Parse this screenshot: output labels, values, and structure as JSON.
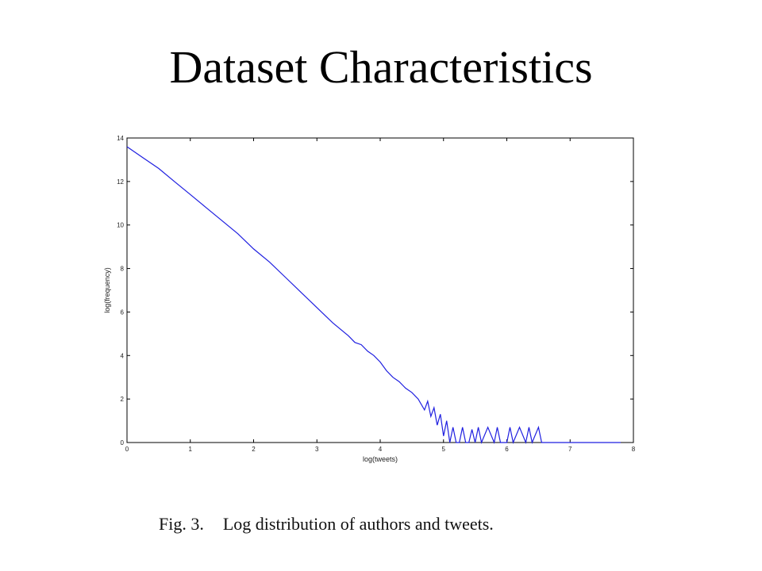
{
  "slide": {
    "title": "Dataset Characteristics"
  },
  "caption": {
    "figure_label": "Fig. 3.",
    "text": "Log distribution of authors and tweets."
  },
  "colors": {
    "series": "#1f1fe0",
    "axes": "#000000",
    "background": "#ffffff"
  },
  "chart_data": {
    "type": "line",
    "title": "",
    "xlabel": "log(tweets)",
    "ylabel": "log(frequency)",
    "xlim": [
      0,
      8
    ],
    "ylim": [
      0,
      14
    ],
    "xticks": [
      0,
      1,
      2,
      3,
      4,
      5,
      6,
      7,
      8
    ],
    "yticks": [
      0,
      2,
      4,
      6,
      8,
      10,
      12,
      14
    ],
    "grid": false,
    "legend": "none",
    "series": [
      {
        "x": [
          0,
          0.25,
          0.5,
          0.75,
          1,
          1.25,
          1.5,
          1.75,
          2,
          2.25,
          2.5,
          2.75,
          3,
          3.25,
          3.5,
          3.6,
          3.7,
          3.8,
          3.9,
          4.0,
          4.1,
          4.2,
          4.3,
          4.4,
          4.5,
          4.6,
          4.7,
          4.75,
          4.8,
          4.85,
          4.9,
          4.95,
          5.0,
          5.05,
          5.1,
          5.15,
          5.2,
          5.25,
          5.3,
          5.35,
          5.4,
          5.45,
          5.5,
          5.55,
          5.6,
          5.7,
          5.8,
          5.85,
          5.9,
          6.0,
          6.05,
          6.1,
          6.2,
          6.3,
          6.35,
          6.4,
          6.5,
          6.55,
          6.6,
          7.0,
          7.5,
          7.8
        ],
        "y": [
          13.6,
          13.1,
          12.6,
          12.0,
          11.4,
          10.8,
          10.2,
          9.6,
          8.9,
          8.3,
          7.6,
          6.9,
          6.2,
          5.5,
          4.9,
          4.6,
          4.5,
          4.2,
          4.0,
          3.7,
          3.3,
          3.0,
          2.8,
          2.5,
          2.3,
          2.0,
          1.5,
          1.9,
          1.2,
          1.6,
          0.8,
          1.3,
          0.3,
          1.0,
          0.0,
          0.7,
          0.0,
          0.0,
          0.7,
          0.0,
          0.0,
          0.6,
          0.0,
          0.7,
          0.0,
          0.7,
          0.0,
          0.7,
          0.0,
          0.0,
          0.7,
          0.0,
          0.7,
          0.0,
          0.7,
          0.0,
          0.7,
          0.0,
          0.0,
          0.0,
          0.0,
          0.0
        ]
      }
    ]
  }
}
